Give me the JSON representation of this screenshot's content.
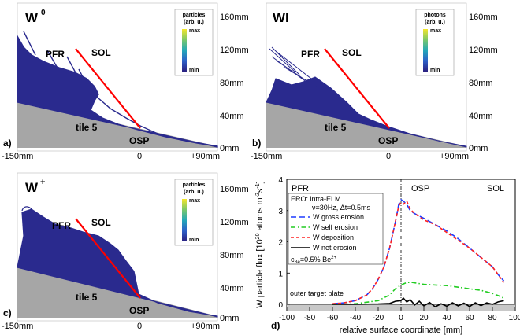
{
  "colors": {
    "plume": "#2a2a8e",
    "tile": "#a0a0a0",
    "sep": "#ff0000",
    "blue": "#1f3cff",
    "green": "#22cc22",
    "red": "#ff2020",
    "black": "#000000",
    "gray": "#c8c8c8"
  },
  "panels": [
    {
      "id": "a",
      "letter": "a)",
      "species": "W",
      "sup": "0",
      "colorbar_title": "particles",
      "colorbar_unit": "(arb. u.)"
    },
    {
      "id": "b",
      "letter": "b)",
      "species": "WI",
      "sup": "",
      "colorbar_title": "photons",
      "colorbar_unit": "(arb. u.)"
    },
    {
      "id": "c",
      "letter": "c)",
      "species": "W",
      "sup": "+",
      "colorbar_title": "particles",
      "colorbar_unit": "(arb. u.)"
    }
  ],
  "panel_common": {
    "pfr": "PFR",
    "sol": "SOL",
    "tile": "tile 5",
    "osp": "OSP",
    "cb_max": "max",
    "cb_min": "min",
    "x_ticks": [
      "-150mm",
      "0",
      "+90mm"
    ],
    "y_ticks": [
      "160mm",
      "120mm",
      "80mm",
      "40mm",
      "0mm"
    ]
  },
  "chart_data": {
    "type": "line",
    "panel_letter": "d)",
    "title": "",
    "xlabel": "relative surface coordinate [mm]",
    "ylabel": "W particle flux [10",
    "ylabel_exp": "20",
    "ylabel_rest": " atoms m",
    "ylabel_exp2": "-2",
    "ylabel_end": "s",
    "ylabel_exp3": "-1",
    "ylabel_close": "]",
    "xlim": [
      -100,
      100
    ],
    "ylim": [
      -0.2,
      4
    ],
    "x_ticks": [
      -100,
      -80,
      -60,
      -40,
      -20,
      0,
      20,
      40,
      60,
      80,
      100
    ],
    "y_ticks": [
      0,
      1,
      2,
      3,
      4
    ],
    "regions": [
      "PFR",
      "OSP",
      "SOL"
    ],
    "plate_label": "outer target plate",
    "legend_header_1": "ERO: intra-ELM",
    "legend_header_2": "ν=30Hz, Δt=0.5ms",
    "legend_footer": "c",
    "legend_footer_sub": "Be",
    "legend_footer_rest": "=0.5% Be",
    "legend_footer_sup": "2+",
    "series": [
      {
        "name": "W gross erosion",
        "color": "#1f3cff",
        "dash": "7,4",
        "x": [
          -60,
          -50,
          -40,
          -30,
          -25,
          -20,
          -15,
          -10,
          -7,
          -4,
          -2,
          0,
          2,
          5,
          8,
          12,
          20,
          30,
          40,
          50,
          60,
          70,
          80,
          85,
          90
        ],
        "y": [
          0.02,
          0.05,
          0.12,
          0.3,
          0.5,
          0.8,
          1.2,
          1.8,
          2.3,
          2.8,
          3.2,
          3.35,
          3.3,
          3.2,
          3.0,
          2.9,
          2.75,
          2.55,
          2.35,
          2.1,
          1.8,
          1.5,
          1.2,
          0.95,
          0.75
        ]
      },
      {
        "name": "W self erosion",
        "color": "#22cc22",
        "dash": "6,3,1.5,3",
        "x": [
          -60,
          -40,
          -20,
          -10,
          -5,
          0,
          5,
          10,
          20,
          30,
          40,
          50,
          60,
          70,
          80,
          85,
          90
        ],
        "y": [
          0.0,
          0.02,
          0.12,
          0.3,
          0.5,
          0.62,
          0.7,
          0.7,
          0.64,
          0.62,
          0.6,
          0.55,
          0.5,
          0.45,
          0.35,
          0.28,
          0.2
        ]
      },
      {
        "name": "W deposition",
        "color": "#ff2020",
        "dash": "4,3",
        "x": [
          -60,
          -50,
          -40,
          -30,
          -25,
          -20,
          -15,
          -10,
          -7,
          -4,
          -2,
          0,
          2,
          5,
          8,
          12,
          20,
          30,
          40,
          50,
          60,
          70,
          80,
          85,
          90
        ],
        "y": [
          0.02,
          0.05,
          0.12,
          0.3,
          0.5,
          0.8,
          1.2,
          1.8,
          2.3,
          2.8,
          3.15,
          3.25,
          3.2,
          3.3,
          3.05,
          2.9,
          2.7,
          2.55,
          2.3,
          2.05,
          1.8,
          1.5,
          1.2,
          0.95,
          0.7
        ]
      },
      {
        "name": "W net erosion",
        "color": "#000000",
        "dash": "",
        "x": [
          -60,
          -40,
          -20,
          -10,
          -5,
          0,
          2,
          5,
          8,
          12,
          16,
          20,
          25,
          30,
          35,
          40,
          45,
          50,
          55,
          60,
          65,
          70,
          75,
          80,
          85,
          90
        ],
        "y": [
          0,
          0,
          0.01,
          0.03,
          0.1,
          0.12,
          0.2,
          0.08,
          0.15,
          -0.02,
          0.1,
          -0.05,
          0.06,
          -0.08,
          0.02,
          -0.06,
          0.05,
          -0.05,
          0.04,
          -0.07,
          0.05,
          -0.04,
          0.05,
          0.0,
          0.08,
          0.12
        ]
      }
    ]
  }
}
